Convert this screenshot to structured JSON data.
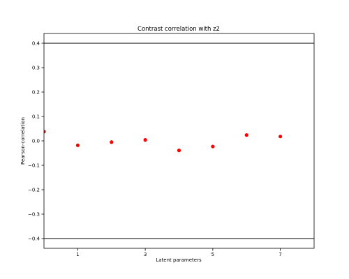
{
  "chart_data": {
    "type": "scatter",
    "title": "Contrast correlation with z2",
    "xlabel": "Latent parameters",
    "ylabel": "Pearson-correlation",
    "xlim": [
      0,
      8
    ],
    "ylim": [
      -0.44,
      0.44
    ],
    "xticks": [
      1,
      3,
      5,
      7
    ],
    "xtick_labels": [
      "1",
      "3",
      "5",
      "7"
    ],
    "yticks": [
      0.4,
      0.3,
      0.2,
      0.1,
      0.0,
      -0.1,
      -0.2,
      -0.3,
      -0.4
    ],
    "ytick_labels": [
      "0.4",
      "0.3",
      "0.2",
      "0.1",
      "0.0",
      "−0.1",
      "−0.2",
      "−0.3",
      "−0.4"
    ],
    "grid": false,
    "point_color": "#ff0000",
    "reference_lines": [
      0.4,
      -0.4
    ],
    "reference_line_color": "#000000",
    "series": [
      {
        "x": [
          0,
          1,
          2,
          3,
          4,
          5,
          6,
          7
        ],
        "y": [
          0.038,
          -0.018,
          -0.005,
          0.004,
          -0.039,
          -0.023,
          0.024,
          0.018
        ]
      }
    ]
  }
}
